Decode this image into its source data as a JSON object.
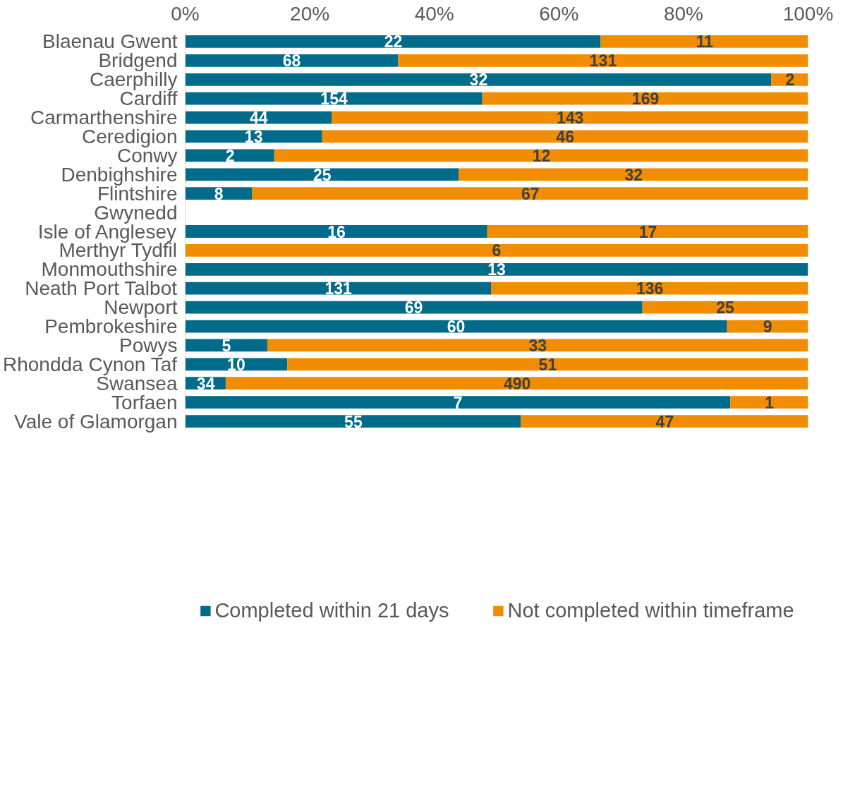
{
  "chart_data": {
    "type": "bar",
    "orientation": "horizontal",
    "stacked": true,
    "categories": [
      "Blaenau Gwent",
      "Bridgend",
      "Caerphilly",
      "Cardiff",
      "Carmarthenshire",
      "Ceredigion",
      "Conwy",
      "Denbighshire",
      "Flintshire",
      "Gwynedd",
      "Isle of Anglesey",
      "Merthyr Tydfil",
      "Monmouthshire",
      "Neath Port Talbot",
      "Newport",
      "Pembrokeshire",
      "Powys",
      "Rhondda Cynon Taf",
      "Swansea",
      "Torfaen",
      "Vale of Glamorgan"
    ],
    "series": [
      {
        "name": "Completed within 21 days",
        "color": "#006b8a",
        "values": [
          66.7,
          34.2,
          94.1,
          47.7,
          23.5,
          22.0,
          14.3,
          43.9,
          10.7,
          null,
          48.5,
          0,
          100,
          49.1,
          73.4,
          87.0,
          13.2,
          16.4,
          6.5,
          87.5,
          53.9
        ]
      },
      {
        "name": "Not completed within timeframe",
        "color": "#f28c00",
        "values": [
          33.3,
          65.8,
          5.9,
          52.3,
          76.5,
          78.0,
          85.7,
          56.1,
          89.3,
          null,
          51.5,
          100,
          0,
          50.9,
          26.6,
          13.0,
          86.8,
          83.6,
          93.5,
          12.5,
          46.1
        ]
      }
    ],
    "annotations": [
      {
        "text": "22",
        "x": 33.4,
        "y": "Blaenau Gwent"
      },
      {
        "text": "11",
        "x": 83.4,
        "y": "Blaenau Gwent"
      },
      {
        "text": "68",
        "x": 17.1,
        "y": "Bridgend"
      },
      {
        "text": "131",
        "x": 67.1,
        "y": "Bridgend"
      },
      {
        "text": "32",
        "x": 47.1,
        "y": "Caerphilly"
      },
      {
        "text": "2",
        "x": 97.1,
        "y": "Caerphilly"
      },
      {
        "text": "154",
        "x": 23.9,
        "y": "Cardiff"
      },
      {
        "text": "169",
        "x": 73.9,
        "y": "Cardiff"
      },
      {
        "text": "44",
        "x": 11.8,
        "y": "Carmarthenshire"
      },
      {
        "text": "143",
        "x": 61.8,
        "y": "Carmarthenshire"
      },
      {
        "text": "13",
        "x": 11.0,
        "y": "Ceredigion"
      },
      {
        "text": "46",
        "x": 61.0,
        "y": "Ceredigion"
      },
      {
        "text": "2",
        "x": 7.2,
        "y": "Conwy"
      },
      {
        "text": "12",
        "x": 57.2,
        "y": "Conwy"
      },
      {
        "text": "25",
        "x": 22.0,
        "y": "Denbighshire"
      },
      {
        "text": "32",
        "x": 72.0,
        "y": "Denbighshire"
      },
      {
        "text": "8",
        "x": 5.4,
        "y": "Flintshire"
      },
      {
        "text": "67",
        "x": 55.4,
        "y": "Flintshire"
      },
      {
        "text": "16",
        "x": 24.3,
        "y": "Isle of Anglesey"
      },
      {
        "text": "17",
        "x": 74.3,
        "y": "Isle of Anglesey"
      },
      {
        "text": "6",
        "x": 50.0,
        "y": "Merthyr Tydfil"
      },
      {
        "text": "13",
        "x": 50.0,
        "y": "Monmouthshire"
      },
      {
        "text": "131",
        "x": 24.6,
        "y": "Neath Port Talbot"
      },
      {
        "text": "136",
        "x": 74.6,
        "y": "Neath Port Talbot"
      },
      {
        "text": "69",
        "x": 36.7,
        "y": "Newport"
      },
      {
        "text": "25",
        "x": 86.7,
        "y": "Newport"
      },
      {
        "text": "60",
        "x": 43.5,
        "y": "Pembrokeshire"
      },
      {
        "text": "9",
        "x": 93.5,
        "y": "Pembrokeshire"
      },
      {
        "text": "5",
        "x": 6.6,
        "y": "Powys"
      },
      {
        "text": "33",
        "x": 56.6,
        "y": "Powys"
      },
      {
        "text": "10",
        "x": 8.2,
        "y": "Rhondda Cynon Taf"
      },
      {
        "text": "51",
        "x": 58.2,
        "y": "Rhondda Cynon Taf"
      },
      {
        "text": "34",
        "x": 3.3,
        "y": "Swansea"
      },
      {
        "text": "490",
        "x": 53.3,
        "y": "Swansea"
      },
      {
        "text": "7",
        "x": 43.8,
        "y": "Torfaen"
      },
      {
        "text": "1",
        "x": 93.8,
        "y": "Torfaen"
      },
      {
        "text": "55",
        "x": 27.0,
        "y": "Vale of Glamorgan"
      },
      {
        "text": "47",
        "x": 77.0,
        "y": "Vale of Glamorgan"
      }
    ],
    "xlim": [
      0,
      100
    ],
    "xticks": [
      {
        "value": 0,
        "label": "0%"
      },
      {
        "value": 20,
        "label": "20%"
      },
      {
        "value": 40,
        "label": "40%"
      },
      {
        "value": 60,
        "label": "60%"
      },
      {
        "value": 80,
        "label": "80%"
      },
      {
        "value": 100,
        "label": "100%"
      }
    ],
    "grid": false,
    "legend": "bottom"
  }
}
